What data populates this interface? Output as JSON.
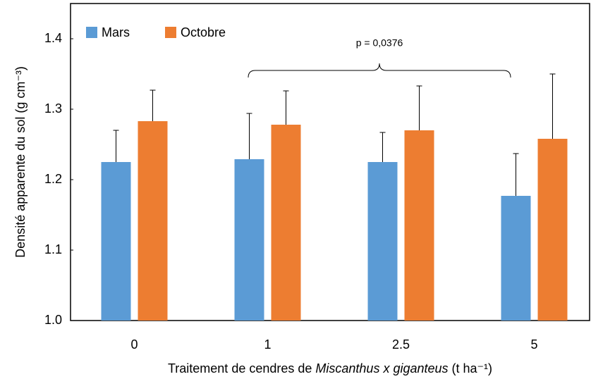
{
  "chart_data": {
    "type": "bar",
    "categories": [
      "0",
      "1",
      "2.5",
      "5"
    ],
    "series": [
      {
        "name": "Mars",
        "color": "#5b9bd5",
        "values": [
          1.225,
          1.229,
          1.225,
          1.177
        ],
        "errors": [
          0.045,
          0.065,
          0.042,
          0.06
        ]
      },
      {
        "name": "Octobre",
        "color": "#ed7d31",
        "values": [
          1.283,
          1.278,
          1.27,
          1.258
        ],
        "errors": [
          0.044,
          0.048,
          0.063,
          0.092
        ]
      }
    ],
    "ylabel": "Densité apparente du sol (g cm⁻³)",
    "xlabel": [
      "Traitement de cendres de ",
      "Miscanthus x giganteus",
      " (t ha⁻¹)"
    ],
    "annotation": "p = 0,0376",
    "ylim": [
      1.0,
      1.45
    ],
    "yticks": [
      {
        "value": 1.0,
        "label": "1.0"
      },
      1.1,
      1.2,
      1.3,
      1.4
    ],
    "legend": "top-left"
  }
}
